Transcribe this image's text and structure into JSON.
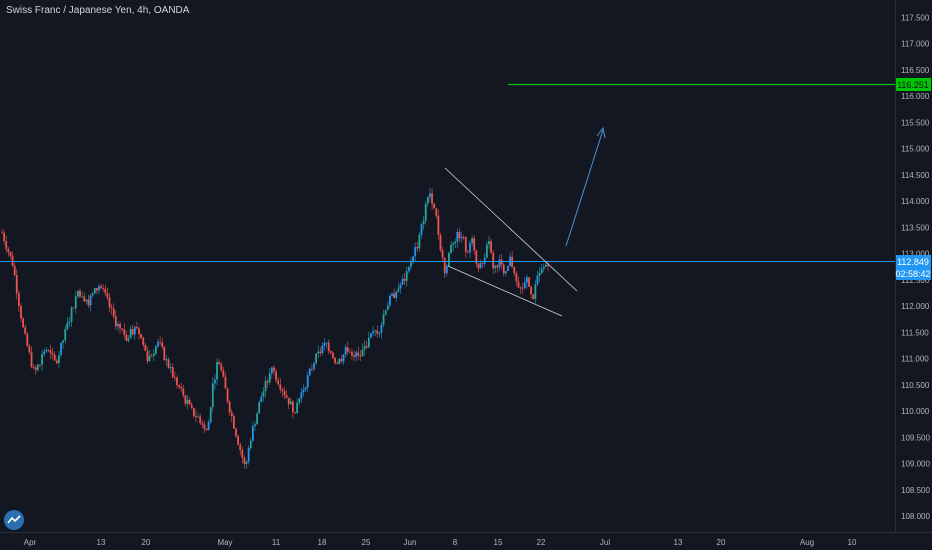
{
  "chart_title": "Swiss Franc / Japanese Yen, 4h, OANDA",
  "colors": {
    "background": "#131722",
    "up_candle": "#26a69a",
    "up_candle_blue": "#2196f3",
    "down_candle": "#ef5350",
    "current_price_line": "#2196f3",
    "target_line": "#00c400",
    "axis_text": "#b2b5be",
    "pattern_lines": "#d1d4dc",
    "arrow": "#4a90d9"
  },
  "labels": {
    "current_price": "112.849",
    "countdown": "02:58:42",
    "target_price": "116.251"
  },
  "icons": {
    "logo": "tradingview-logo-icon"
  },
  "chart_data": {
    "type": "candlestick",
    "title": "Swiss Franc / Japanese Yen, 4h, OANDA",
    "y_ticks": [
      "117.500",
      "117.000",
      "116.500",
      "116.000",
      "115.500",
      "115.000",
      "114.500",
      "114.000",
      "113.500",
      "113.000",
      "112.500",
      "112.000",
      "111.500",
      "111.000",
      "110.500",
      "110.000",
      "109.500",
      "109.000",
      "108.500",
      "108.000"
    ],
    "y_tick_values": [
      117.5,
      117.0,
      116.5,
      116.0,
      115.5,
      115.0,
      114.5,
      114.0,
      113.5,
      113.0,
      112.5,
      112.0,
      111.5,
      111.0,
      110.5,
      110.0,
      109.5,
      109.0,
      108.5,
      108.0
    ],
    "ylim": [
      107.7,
      118.0
    ],
    "x_ticks": [
      "Apr",
      "13",
      "20",
      "May",
      "11",
      "18",
      "25",
      "Jun",
      "8",
      "15",
      "22",
      "Jul",
      "13",
      "20",
      "Aug",
      "10"
    ],
    "current_price": 112.849,
    "target_price": 116.251,
    "price_path": [
      [
        0,
        113.4
      ],
      [
        2,
        112.8
      ],
      [
        4,
        111.5
      ],
      [
        6,
        110.7
      ],
      [
        8,
        111.2
      ],
      [
        10,
        110.9
      ],
      [
        12,
        111.6
      ],
      [
        14,
        112.3
      ],
      [
        16,
        112.1
      ],
      [
        18,
        112.4
      ],
      [
        19,
        112.2
      ],
      [
        21,
        111.7
      ],
      [
        23,
        111.4
      ],
      [
        25,
        111.6
      ],
      [
        27,
        111.0
      ],
      [
        29,
        111.3
      ],
      [
        31,
        110.8
      ],
      [
        33,
        110.4
      ],
      [
        35,
        110.0
      ],
      [
        37,
        109.8
      ],
      [
        38,
        109.6
      ],
      [
        39,
        110.5
      ],
      [
        40,
        111.0
      ],
      [
        42,
        110.1
      ],
      [
        44,
        109.3
      ],
      [
        45,
        108.9
      ],
      [
        46,
        109.5
      ],
      [
        48,
        110.3
      ],
      [
        50,
        110.8
      ],
      [
        52,
        110.4
      ],
      [
        54,
        110.0
      ],
      [
        56,
        110.5
      ],
      [
        58,
        111.0
      ],
      [
        60,
        111.3
      ],
      [
        62,
        110.9
      ],
      [
        64,
        111.2
      ],
      [
        66,
        111.0
      ],
      [
        68,
        111.4
      ],
      [
        70,
        111.6
      ],
      [
        71,
        112.0
      ],
      [
        73,
        112.3
      ],
      [
        75,
        112.6
      ],
      [
        76,
        113.0
      ],
      [
        77,
        113.2
      ],
      [
        79,
        114.2
      ],
      [
        80,
        113.9
      ],
      [
        81,
        113.2
      ],
      [
        82,
        112.6
      ],
      [
        83,
        113.2
      ],
      [
        85,
        113.4
      ],
      [
        86,
        113.0
      ],
      [
        87,
        113.4
      ],
      [
        88,
        112.6
      ],
      [
        89,
        112.9
      ],
      [
        90,
        113.2
      ],
      [
        91,
        112.7
      ],
      [
        92,
        112.9
      ],
      [
        93,
        112.5
      ],
      [
        94,
        112.9
      ],
      [
        95,
        112.6
      ],
      [
        96,
        112.3
      ],
      [
        97,
        112.5
      ],
      [
        98,
        112.1
      ],
      [
        99,
        112.5
      ],
      [
        100,
        112.7
      ],
      [
        101,
        112.85
      ]
    ]
  }
}
